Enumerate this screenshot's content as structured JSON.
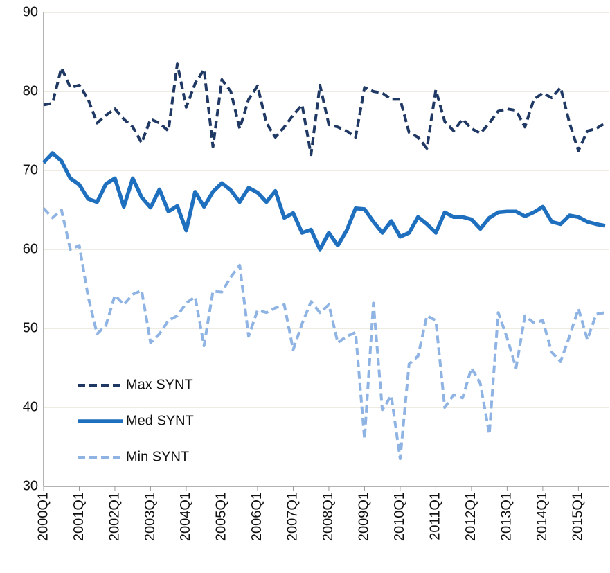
{
  "chart_data": {
    "type": "line",
    "categories": [
      "2000Q1",
      null,
      null,
      null,
      "2001Q1",
      null,
      null,
      null,
      "2002Q1",
      null,
      null,
      null,
      "2003Q1",
      null,
      null,
      null,
      "2004Q1",
      null,
      null,
      null,
      "2005Q1",
      null,
      null,
      null,
      "2006Q1",
      null,
      null,
      null,
      "2007Q1",
      null,
      null,
      null,
      "2008Q1",
      null,
      null,
      null,
      "2009Q1",
      null,
      null,
      null,
      "2010Q1",
      null,
      null,
      null,
      "2011Q1",
      null,
      null,
      null,
      "2012Q1",
      null,
      null,
      null,
      "2013Q1",
      null,
      null,
      null,
      "2014Q1",
      null,
      null,
      null,
      "2015Q1",
      null,
      null,
      null
    ],
    "series": [
      {
        "name": "Max SYNT",
        "color": "#1f3864",
        "dash": true,
        "values": [
          78.3,
          78.5,
          83,
          80.5,
          80.8,
          79,
          76,
          77,
          77.8,
          76.5,
          75.5,
          73.5,
          76.5,
          76,
          75,
          83.5,
          78,
          81,
          82.8,
          73,
          81.5,
          80,
          75.3,
          79,
          80.7,
          76,
          74.2,
          75.5,
          77,
          78.3,
          72,
          80.8,
          75.8,
          75.5,
          75,
          74.2,
          80.5,
          80,
          79.8,
          79,
          79,
          74.8,
          74.2,
          72.8,
          80.2,
          76.2,
          75,
          76.5,
          75.3,
          74.7,
          76,
          77.5,
          77.8,
          77.6,
          75.5,
          79,
          79.8,
          79.2,
          80.5,
          76,
          72.5,
          75,
          75.3,
          76
        ]
      },
      {
        "name": "Med SYNT",
        "color": "#1f6fbf",
        "dash": false,
        "values": [
          71,
          72.2,
          71.2,
          69,
          68.2,
          66.4,
          66,
          68.3,
          69,
          65.4,
          69,
          66.6,
          65.3,
          67.6,
          64.8,
          65.5,
          62.4,
          67.3,
          65.4,
          67.3,
          68.4,
          67.5,
          66,
          67.8,
          67.2,
          66,
          67.4,
          64,
          64.6,
          62.1,
          62.5,
          60,
          62.1,
          60.5,
          62.4,
          65.2,
          65.1,
          63.5,
          62.1,
          63.6,
          61.6,
          62.1,
          64.1,
          63.2,
          62.1,
          64.7,
          64.1,
          64.1,
          63.8,
          62.6,
          64,
          64.7,
          64.8,
          64.8,
          64.2,
          64.7,
          65.4,
          63.5,
          63.2,
          64.3,
          64.1,
          63.5,
          63.2,
          63
        ]
      },
      {
        "name": "Min SYNT",
        "color": "#8fb4e3",
        "dash": true,
        "values": [
          65.2,
          64,
          65,
          60,
          60.5,
          54,
          49.3,
          50.4,
          54.2,
          53,
          54.3,
          54.8,
          48.2,
          49.3,
          51,
          51.6,
          53.2,
          54,
          47.8,
          54.7,
          54.6,
          56.5,
          58,
          49,
          52.3,
          52,
          52.6,
          53,
          47.3,
          50.6,
          53.4,
          52,
          53,
          48.2,
          49,
          49.5,
          36,
          53.2,
          39.7,
          41.5,
          33.5,
          45.5,
          46.5,
          51.6,
          51,
          40,
          41.6,
          41.2,
          45,
          43,
          36.6,
          52,
          48.8,
          45,
          51.6,
          50.7,
          51,
          47,
          45.8,
          49,
          52.5,
          48.6,
          51.8,
          52
        ]
      }
    ],
    "ylim": [
      30,
      90
    ],
    "yticks": [
      30,
      40,
      50,
      60,
      70,
      80,
      90
    ],
    "grid": true,
    "legend": "lower left"
  }
}
